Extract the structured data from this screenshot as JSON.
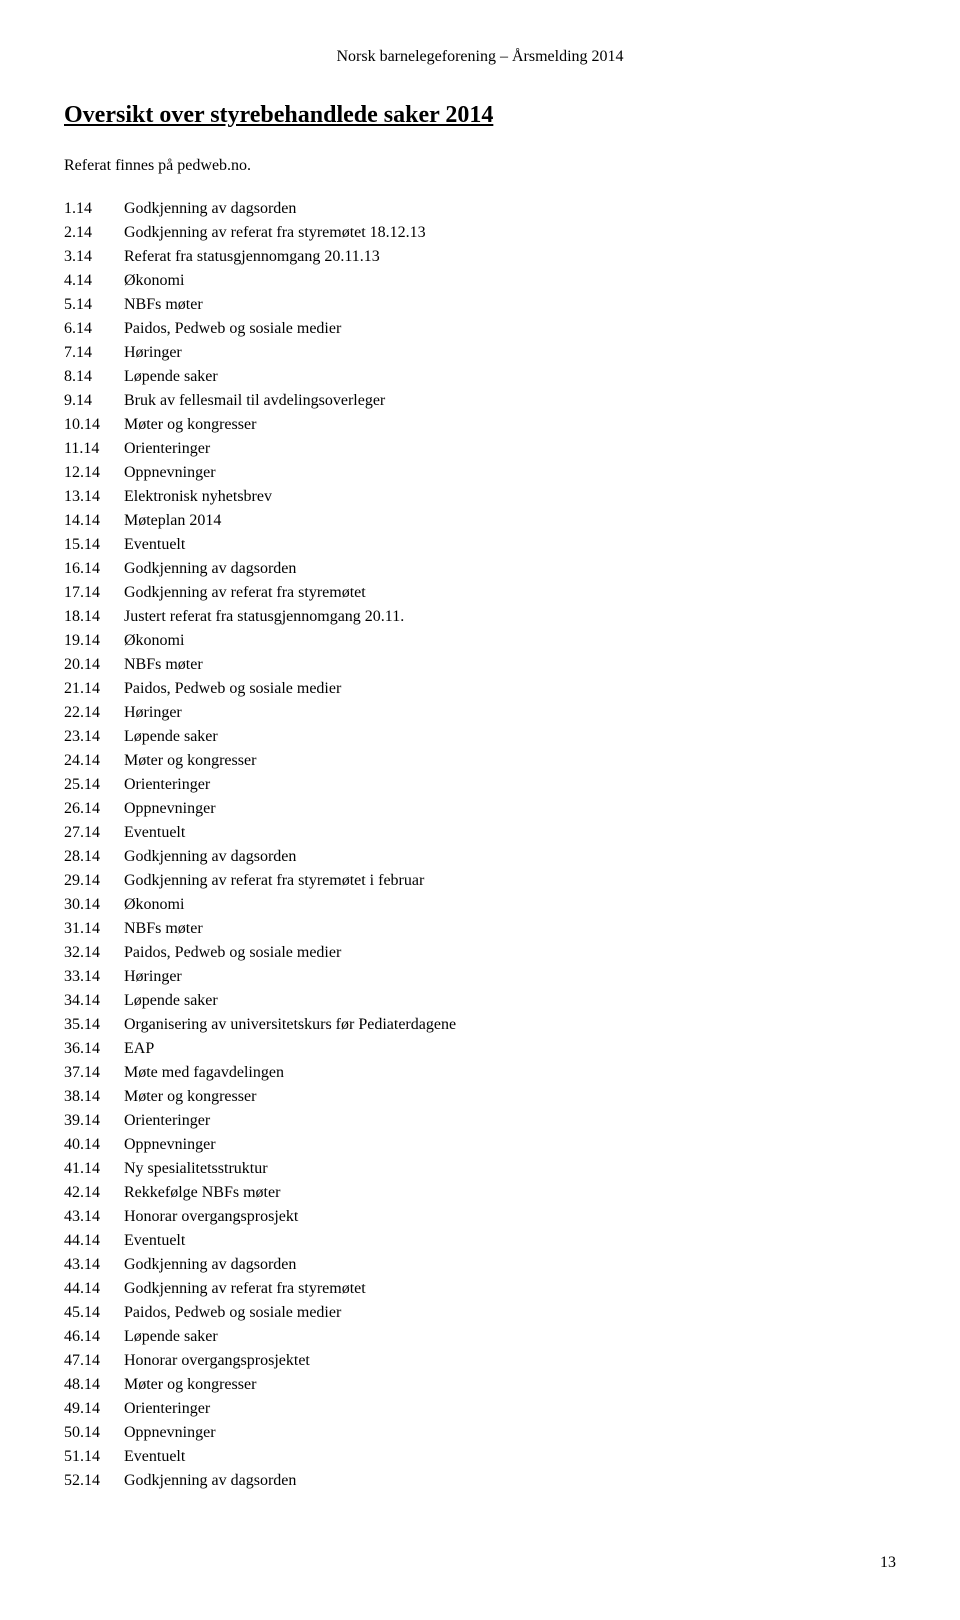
{
  "header": "Norsk barnelegeforening – Årsmelding 2014",
  "title": "Oversikt over styrebehandlede saker 2014",
  "note": "Referat finnes på pedweb.no.",
  "items": [
    {
      "num": "1.14",
      "text": "Godkjenning av dagsorden"
    },
    {
      "num": "2.14",
      "text": "Godkjenning av referat fra styremøtet 18.12.13"
    },
    {
      "num": "3.14",
      "text": "Referat fra statusgjennomgang 20.11.13"
    },
    {
      "num": "4.14",
      "text": "Økonomi"
    },
    {
      "num": "5.14",
      "text": "NBFs møter"
    },
    {
      "num": "6.14",
      "text": "Paidos, Pedweb og sosiale medier"
    },
    {
      "num": "7.14",
      "text": "Høringer"
    },
    {
      "num": "8.14",
      "text": "Løpende saker"
    },
    {
      "num": "9.14",
      "text": "Bruk av fellesmail til avdelingsoverleger"
    },
    {
      "num": "10.14",
      "text": "Møter og kongresser"
    },
    {
      "num": "11.14",
      "text": "Orienteringer"
    },
    {
      "num": "12.14",
      "text": "Oppnevninger"
    },
    {
      "num": "13.14",
      "text": "Elektronisk nyhetsbrev"
    },
    {
      "num": "14.14",
      "text": "Møteplan 2014"
    },
    {
      "num": "15.14",
      "text": "Eventuelt"
    },
    {
      "num": "16.14",
      "text": "Godkjenning av dagsorden"
    },
    {
      "num": "17.14",
      "text": "Godkjenning av referat fra styremøtet"
    },
    {
      "num": "18.14",
      "text": "Justert referat fra statusgjennomgang 20.11."
    },
    {
      "num": "19.14",
      "text": "Økonomi"
    },
    {
      "num": "20.14",
      "text": "NBFs møter"
    },
    {
      "num": "21.14",
      "text": "Paidos, Pedweb og sosiale medier"
    },
    {
      "num": "22.14",
      "text": "Høringer"
    },
    {
      "num": "23.14",
      "text": "Løpende saker"
    },
    {
      "num": "24.14",
      "text": "Møter og kongresser"
    },
    {
      "num": "25.14",
      "text": "Orienteringer"
    },
    {
      "num": "26.14",
      "text": "Oppnevninger"
    },
    {
      "num": "27.14",
      "text": "Eventuelt"
    },
    {
      "num": "28.14",
      "text": "Godkjenning av dagsorden"
    },
    {
      "num": "29.14",
      "text": "Godkjenning av referat fra styremøtet i februar"
    },
    {
      "num": "30.14",
      "text": "Økonomi"
    },
    {
      "num": "31.14",
      "text": "NBFs møter"
    },
    {
      "num": "32.14",
      "text": "Paidos, Pedweb og sosiale medier"
    },
    {
      "num": "33.14",
      "text": "Høringer"
    },
    {
      "num": "34.14",
      "text": "Løpende saker"
    },
    {
      "num": "35.14",
      "text": "Organisering av universitetskurs før Pediaterdagene"
    },
    {
      "num": "36.14",
      "text": "EAP"
    },
    {
      "num": "37.14",
      "text": "Møte med fagavdelingen"
    },
    {
      "num": "38.14",
      "text": "Møter og kongresser"
    },
    {
      "num": "39.14",
      "text": "Orienteringer"
    },
    {
      "num": "40.14",
      "text": "Oppnevninger"
    },
    {
      "num": "41.14",
      "text": "Ny spesialitetsstruktur"
    },
    {
      "num": "42.14",
      "text": "Rekkefølge NBFs møter"
    },
    {
      "num": "43.14",
      "text": "Honorar overgangsprosjekt"
    },
    {
      "num": "44.14",
      "text": "Eventuelt"
    },
    {
      "num": "43.14",
      "text": "Godkjenning av dagsorden"
    },
    {
      "num": "44.14",
      "text": "Godkjenning av referat fra styremøtet"
    },
    {
      "num": "45.14",
      "text": "Paidos, Pedweb og sosiale medier"
    },
    {
      "num": "46.14",
      "text": "Løpende saker"
    },
    {
      "num": "47.14",
      "text": "Honorar overgangsprosjektet"
    },
    {
      "num": "48.14",
      "text": "Møter og kongresser"
    },
    {
      "num": "49.14",
      "text": "Orienteringer"
    },
    {
      "num": "50.14",
      "text": "Oppnevninger"
    },
    {
      "num": "51.14",
      "text": "Eventuelt"
    },
    {
      "num": "52.14",
      "text": "Godkjenning av dagsorden"
    }
  ],
  "pageNumber": "13"
}
